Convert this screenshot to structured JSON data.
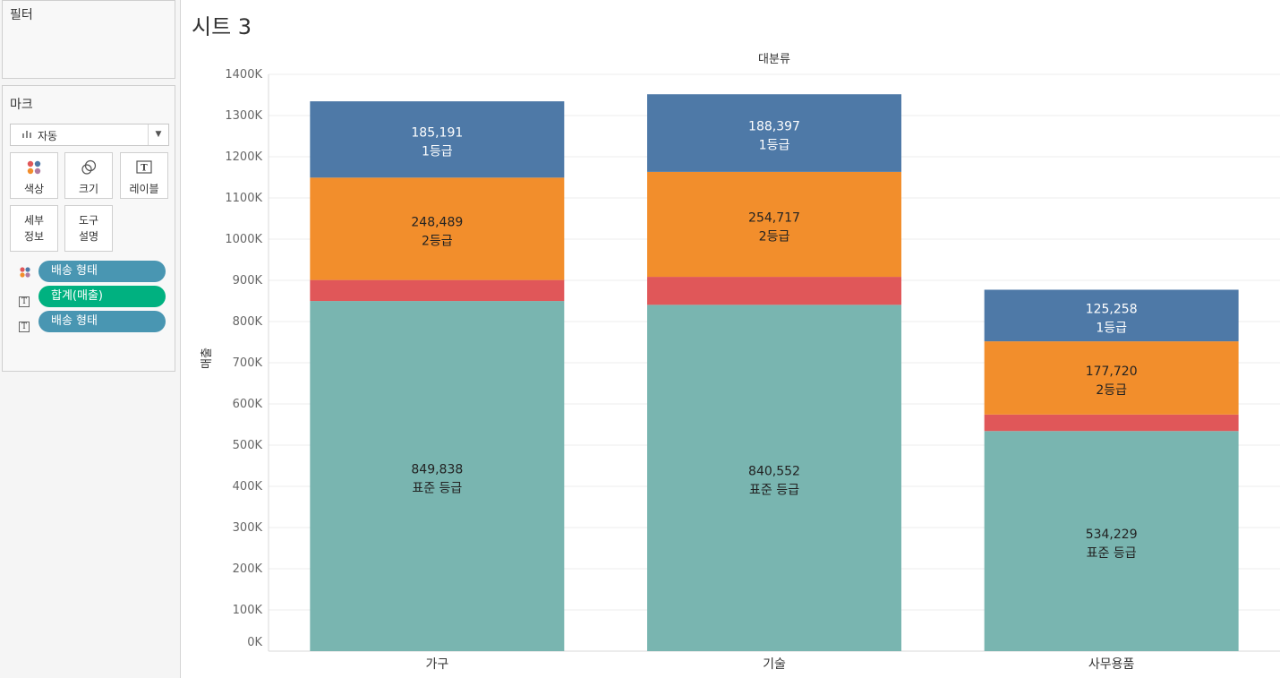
{
  "filter_panel": {
    "title": "필터"
  },
  "marks_panel": {
    "title": "마크",
    "mark_type": "자동",
    "cards": [
      {
        "label": "색상",
        "icon": "color-dots-icon"
      },
      {
        "label": "크기",
        "icon": "size-icon"
      },
      {
        "label": "레이블",
        "icon": "label-T-icon"
      },
      {
        "label": "세부\n정보",
        "icon": ""
      },
      {
        "label": "도구\n설명",
        "icon": ""
      }
    ],
    "pills": [
      {
        "icon": "color-dots-icon",
        "label": "배송 형태",
        "color": "#4996b2"
      },
      {
        "icon": "label-T-icon",
        "label": "합계(매출)",
        "color": "#00b180"
      },
      {
        "icon": "label-T-icon",
        "label": "배송 형태",
        "color": "#4996b2"
      }
    ]
  },
  "sheet": {
    "title": "시트 3"
  },
  "chart_data": {
    "type": "bar",
    "stacked": true,
    "column_header": "대분류",
    "ylabel": "매출",
    "ylim": [
      0,
      1400000
    ],
    "yticks": [
      0,
      100000,
      200000,
      300000,
      400000,
      500000,
      600000,
      700000,
      800000,
      900000,
      1000000,
      1100000,
      1200000,
      1300000,
      1400000
    ],
    "ytick_labels": [
      "0K",
      "100K",
      "200K",
      "300K",
      "400K",
      "500K",
      "600K",
      "700K",
      "800K",
      "900K",
      "1000K",
      "1100K",
      "1200K",
      "1300K",
      "1400K"
    ],
    "grid": true,
    "categories": [
      "가구",
      "기술",
      "사무용품"
    ],
    "series": [
      {
        "name": "표준 등급",
        "color": "#79b5b0",
        "values": [
          849838,
          840552,
          534229
        ],
        "value_labels": [
          "849,838",
          "840,552",
          "534,229"
        ],
        "labeled": true
      },
      {
        "name": "",
        "color": "#e05759",
        "values": [
          51000,
          68000,
          40000
        ],
        "labeled": false
      },
      {
        "name": "2등급",
        "color": "#f28e2c",
        "values": [
          248489,
          254717,
          177720
        ],
        "value_labels": [
          "248,489",
          "254,717",
          "177,720"
        ],
        "labeled": true
      },
      {
        "name": "1등급",
        "color": "#4e79a7",
        "values": [
          185191,
          188397,
          125258
        ],
        "value_labels": [
          "185,191",
          "188,397",
          "125,258"
        ],
        "labeled": true
      }
    ]
  }
}
